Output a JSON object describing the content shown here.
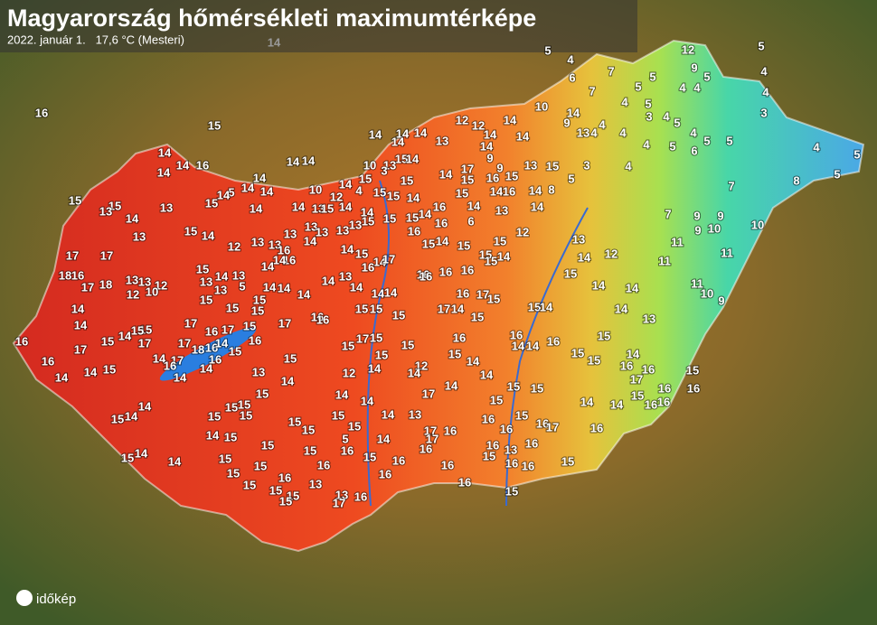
{
  "header": {
    "title": "Magyarország hőmérsékleti maximumtérképe",
    "subtitle": "2022. január 1.   17,6 °C (Mesteri)"
  },
  "logo": "időkép",
  "labels": [
    16,
    15,
    14,
    5,
    4,
    6,
    7,
    7,
    4,
    5,
    5,
    12,
    9,
    5,
    4,
    4,
    5,
    4,
    4,
    3,
    10,
    14,
    9,
    13,
    4,
    4,
    4,
    5,
    3,
    4,
    5,
    4,
    4,
    5,
    6,
    5,
    5,
    4,
    5,
    5,
    8,
    7,
    4,
    3,
    5,
    15,
    13,
    8,
    14,
    14,
    7,
    9,
    9,
    9,
    10,
    10,
    11,
    11,
    11,
    11,
    10,
    9,
    12,
    14,
    13,
    15,
    14,
    14,
    14,
    13,
    15,
    14,
    12,
    12,
    14,
    14,
    14,
    13,
    14,
    9,
    9,
    15,
    16,
    17,
    14,
    14,
    14,
    14,
    14,
    15,
    14,
    13,
    3,
    10,
    14,
    14,
    14,
    14,
    16,
    14,
    14,
    14,
    5,
    14,
    14,
    15,
    14,
    15,
    15,
    13,
    14,
    13,
    10,
    14,
    12,
    4,
    15,
    15,
    15,
    15,
    14,
    16,
    15,
    15,
    14,
    16,
    14,
    13,
    6,
    14,
    13,
    15,
    14,
    14,
    15,
    15,
    14,
    16,
    16,
    15,
    14,
    15,
    15,
    15,
    12,
    15,
    14,
    15,
    14,
    13,
    12,
    13,
    13,
    13,
    13,
    13,
    14,
    13,
    13,
    15,
    14,
    15,
    14,
    16,
    17,
    16,
    16,
    16,
    17,
    17,
    18,
    16,
    17,
    18,
    13,
    13,
    12,
    12,
    10,
    15,
    13,
    14,
    13,
    13,
    5,
    15,
    16,
    16,
    14,
    14,
    14,
    14,
    14,
    14,
    13,
    14,
    14,
    14,
    15,
    15,
    15,
    16,
    17,
    14,
    16,
    17,
    15,
    15,
    14,
    14,
    15,
    15,
    15,
    15,
    17,
    16,
    17,
    17,
    16,
    16,
    16,
    17,
    15,
    14,
    15,
    15,
    17,
    17,
    18,
    16,
    15,
    16,
    14,
    16,
    17,
    14,
    16,
    14,
    14,
    16,
    14,
    14,
    15,
    15,
    15,
    17,
    15,
    15,
    15,
    16,
    15,
    16,
    14,
    14,
    16,
    15,
    15,
    14,
    15,
    16,
    16,
    12,
    12,
    14,
    14,
    14,
    14,
    13,
    14,
    15,
    16,
    16,
    17,
    15,
    16,
    16,
    14,
    14,
    14,
    15,
    15,
    15,
    15,
    15,
    14,
    14,
    15,
    15,
    15,
    15,
    16,
    17,
    16,
    17,
    14,
    14,
    13,
    15,
    15,
    15,
    5,
    15,
    17,
    16,
    17,
    16,
    16,
    15,
    14,
    14,
    15,
    15,
    15,
    16,
    15,
    14,
    16,
    16,
    16,
    13,
    16,
    15,
    14,
    14,
    15,
    15,
    15,
    16,
    16,
    16,
    16,
    15,
    16,
    16,
    15,
    15,
    15,
    15,
    13,
    13,
    16,
    17,
    15,
    16,
    15
  ]
}
